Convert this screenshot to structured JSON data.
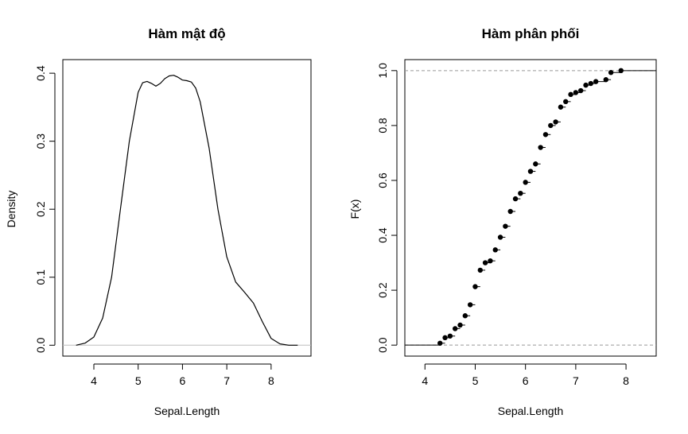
{
  "chart_data": [
    {
      "type": "line",
      "title": "Hàm mật độ",
      "xlabel": "Sepal.Length",
      "ylabel": "Density",
      "xlim": [
        3.3,
        8.9
      ],
      "ylim": [
        -0.016,
        0.42
      ],
      "xticks": [
        "4",
        "5",
        "6",
        "7",
        "8"
      ],
      "yticks": [
        "0.0",
        "0.1",
        "0.2",
        "0.3",
        "0.4"
      ],
      "baseline": 0,
      "baseline_color": "#bebebe",
      "x": [
        3.6,
        3.8,
        4.0,
        4.2,
        4.4,
        4.6,
        4.8,
        5.0,
        5.1,
        5.2,
        5.3,
        5.4,
        5.5,
        5.6,
        5.7,
        5.8,
        5.9,
        6.0,
        6.1,
        6.2,
        6.3,
        6.4,
        6.6,
        6.8,
        7.0,
        7.2,
        7.4,
        7.6,
        7.8,
        8.0,
        8.2,
        8.4,
        8.6
      ],
      "y": [
        0.0,
        0.003,
        0.012,
        0.04,
        0.1,
        0.2,
        0.3,
        0.372,
        0.386,
        0.388,
        0.385,
        0.381,
        0.385,
        0.392,
        0.396,
        0.397,
        0.394,
        0.39,
        0.389,
        0.387,
        0.378,
        0.358,
        0.29,
        0.2,
        0.13,
        0.093,
        0.078,
        0.062,
        0.035,
        0.01,
        0.002,
        0.0,
        0.0
      ]
    },
    {
      "type": "scatter",
      "title": "Hàm phân phối",
      "xlabel": "Sepal.Length",
      "ylabel": "F(x)",
      "xlim": [
        3.6,
        8.6
      ],
      "ylim": [
        -0.04,
        1.04
      ],
      "xticks": [
        "4",
        "5",
        "6",
        "7",
        "8"
      ],
      "yticks": [
        "0.0",
        "0.2",
        "0.4",
        "0.6",
        "0.8",
        "1.0"
      ],
      "reference_lines": [
        0,
        1
      ],
      "reference_line_color": "#999999",
      "x": [
        4.3,
        4.4,
        4.5,
        4.6,
        4.7,
        4.8,
        4.9,
        5.0,
        5.1,
        5.2,
        5.3,
        5.4,
        5.5,
        5.6,
        5.7,
        5.8,
        5.9,
        6.0,
        6.1,
        6.2,
        6.3,
        6.4,
        6.5,
        6.6,
        6.7,
        6.8,
        6.9,
        7.0,
        7.1,
        7.2,
        7.3,
        7.4,
        7.6,
        7.7,
        7.9
      ],
      "y": [
        0.007,
        0.027,
        0.033,
        0.06,
        0.073,
        0.107,
        0.147,
        0.213,
        0.273,
        0.3,
        0.307,
        0.347,
        0.393,
        0.433,
        0.487,
        0.533,
        0.553,
        0.593,
        0.633,
        0.66,
        0.72,
        0.767,
        0.8,
        0.813,
        0.867,
        0.887,
        0.913,
        0.92,
        0.927,
        0.947,
        0.953,
        0.96,
        0.967,
        0.993,
        1.0
      ]
    }
  ]
}
